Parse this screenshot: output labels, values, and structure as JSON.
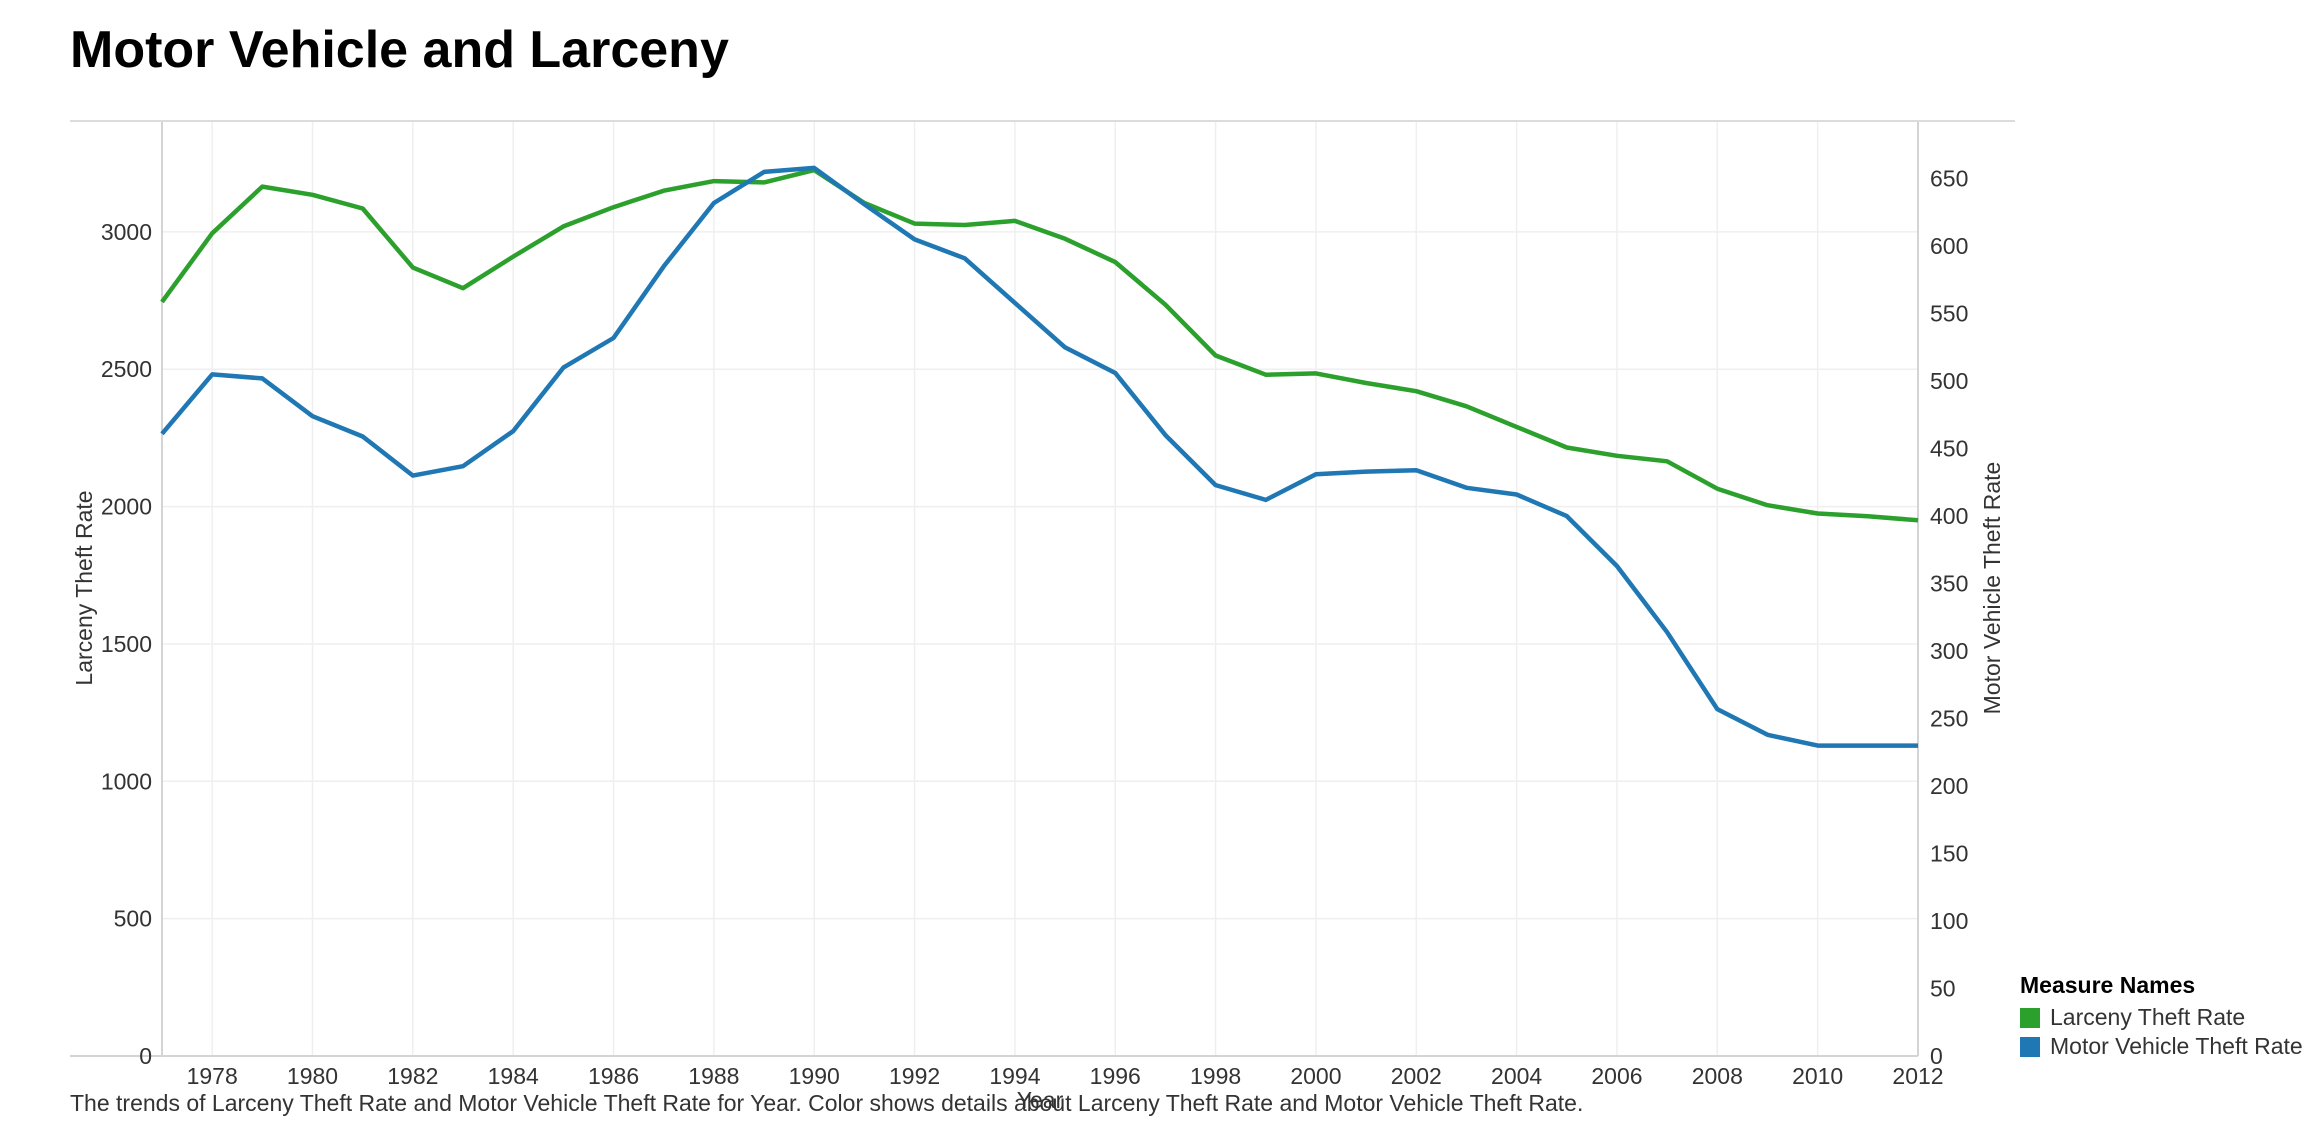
{
  "title": "Motor Vehicle and Larceny",
  "caption": "The trends of Larceny Theft Rate and Motor Vehicle Theft Rate for Year.  Color shows details about Larceny Theft Rate and Motor Vehicle Theft Rate.",
  "legend": {
    "title": "Measure Names",
    "items": [
      {
        "label": "Larceny Theft Rate",
        "color": "#2ca02c"
      },
      {
        "label": "Motor Vehicle Theft Rate",
        "color": "#1f77b4"
      }
    ]
  },
  "chart_data": {
    "type": "line",
    "xlabel": "Year",
    "ylabel": "Larceny Theft Rate",
    "y2label": "Motor Vehicle Theft Rate",
    "x": [
      1977,
      1978,
      1979,
      1980,
      1981,
      1982,
      1983,
      1984,
      1985,
      1986,
      1987,
      1988,
      1989,
      1990,
      1991,
      1992,
      1993,
      1994,
      1995,
      1996,
      1997,
      1998,
      1999,
      2000,
      2001,
      2002,
      2003,
      2004,
      2005,
      2006,
      2007,
      2008,
      2009,
      2010,
      2011,
      2012
    ],
    "xticks": [
      1978,
      1980,
      1982,
      1984,
      1986,
      1988,
      1990,
      1992,
      1994,
      1996,
      1998,
      2000,
      2002,
      2004,
      2006,
      2008,
      2010,
      2012
    ],
    "xlim": [
      1977,
      2012
    ],
    "ylim": [
      0,
      3400
    ],
    "y2lim": [
      0,
      692
    ],
    "yticks": [
      0,
      500,
      1000,
      1500,
      2000,
      2500,
      3000
    ],
    "y2ticks": [
      0,
      50,
      100,
      150,
      200,
      250,
      300,
      350,
      400,
      450,
      500,
      550,
      600,
      650
    ],
    "grid": true,
    "legend_position": "bottom-right",
    "series": [
      {
        "name": "Larceny Theft Rate",
        "axis": "left",
        "color": "#2ca02c",
        "values": [
          2745,
          2995,
          3165,
          3135,
          3085,
          2870,
          2795,
          2910,
          3020,
          3090,
          3150,
          3185,
          3180,
          3225,
          3105,
          3030,
          3025,
          3040,
          2975,
          2890,
          2735,
          2550,
          2480,
          2485,
          2450,
          2420,
          2365,
          2290,
          2215,
          2185,
          2165,
          2065,
          2005,
          1975,
          1965,
          1950
        ]
      },
      {
        "name": "Motor Vehicle Theft Rate",
        "axis": "right",
        "color": "#1f77b4",
        "values": [
          461,
          505,
          502,
          474,
          459,
          430,
          437,
          463,
          510,
          532,
          585,
          632,
          655,
          658,
          631,
          605,
          591,
          558,
          525,
          506,
          460,
          423,
          412,
          431,
          433,
          434,
          421,
          416,
          400,
          363,
          314,
          257,
          238,
          230,
          230,
          230
        ]
      }
    ]
  }
}
